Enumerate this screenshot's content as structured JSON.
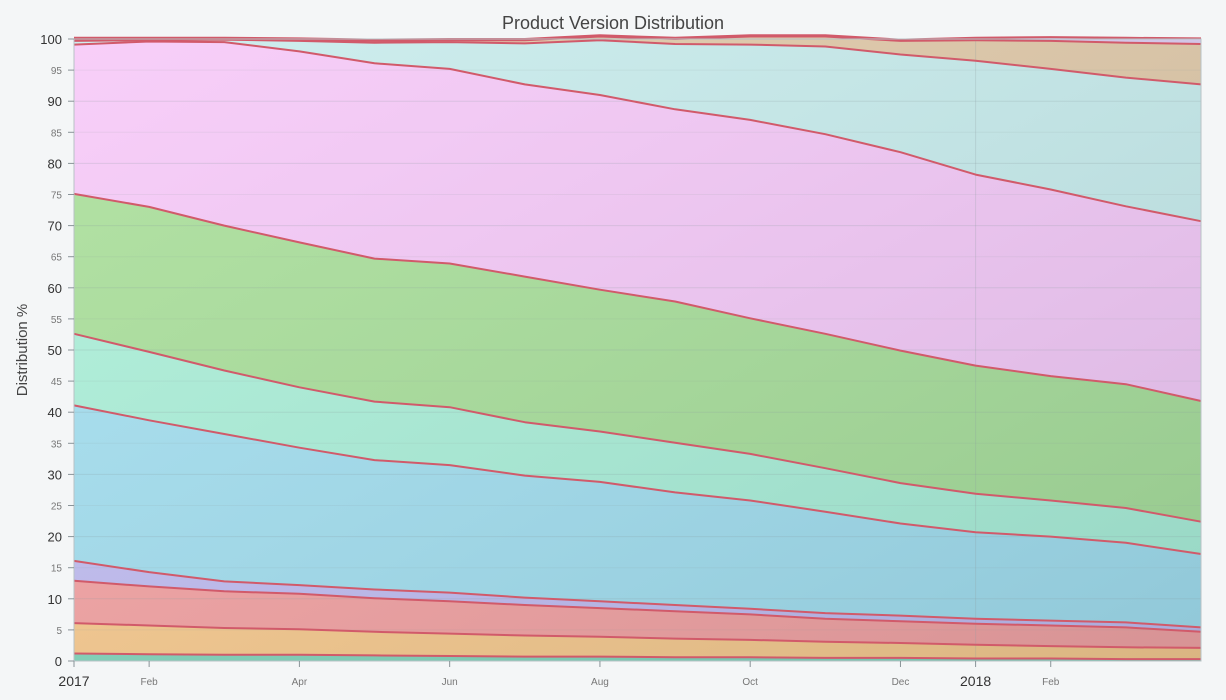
{
  "chart_data": {
    "type": "area",
    "stacked": true,
    "title": "Product Version Distribution",
    "xlabel": "",
    "ylabel": "Distribution %",
    "ylim": [
      0,
      100
    ],
    "grid": true,
    "legend": "none",
    "x": [
      "2017-01",
      "2017-02",
      "2017-03",
      "2017-04",
      "2017-05",
      "2017-06",
      "2017-07",
      "2017-08",
      "2017-09",
      "2017-10",
      "2017-11",
      "2017-12",
      "2018-01",
      "2018-02",
      "2018-03",
      "2018-04"
    ],
    "x_tick_labels": [
      {
        "x": "2017-01",
        "label": "2017",
        "major": true
      },
      {
        "x": "2017-02",
        "label": "Feb",
        "major": false
      },
      {
        "x": "2017-04",
        "label": "Apr",
        "major": false
      },
      {
        "x": "2017-06",
        "label": "Jun",
        "major": false
      },
      {
        "x": "2017-08",
        "label": "Aug",
        "major": false
      },
      {
        "x": "2017-10",
        "label": "Oct",
        "major": false
      },
      {
        "x": "2017-12",
        "label": "Dec",
        "major": false
      },
      {
        "x": "2018-01",
        "label": "2018",
        "major": true
      },
      {
        "x": "2018-02",
        "label": "Feb",
        "major": false
      }
    ],
    "y_tick_labels": [
      "0",
      "5",
      "10",
      "15",
      "20",
      "25",
      "30",
      "35",
      "40",
      "45",
      "50",
      "55",
      "60",
      "65",
      "70",
      "75",
      "80",
      "85",
      "90",
      "95",
      "100"
    ],
    "series": [
      {
        "color": "#7fd4b8",
        "values": [
          1.2,
          1.1,
          1.0,
          1.0,
          0.9,
          0.8,
          0.7,
          0.7,
          0.6,
          0.6,
          0.5,
          0.5,
          0.4,
          0.4,
          0.3,
          0.3
        ]
      },
      {
        "color": "#fbc98a",
        "values": [
          4.9,
          4.6,
          4.3,
          4.1,
          3.8,
          3.6,
          3.4,
          3.2,
          3.0,
          2.8,
          2.6,
          2.4,
          2.2,
          2.0,
          1.9,
          1.8
        ]
      },
      {
        "color": "#f7a0a0",
        "values": [
          6.8,
          6.3,
          5.9,
          5.7,
          5.4,
          5.2,
          4.9,
          4.6,
          4.4,
          4.1,
          3.7,
          3.5,
          3.4,
          3.3,
          3.2,
          2.6
        ]
      },
      {
        "color": "#c2bcf2",
        "values": [
          3.2,
          2.3,
          1.6,
          1.4,
          1.4,
          1.4,
          1.2,
          1.1,
          1.0,
          0.9,
          0.9,
          0.9,
          0.8,
          0.8,
          0.8,
          0.7
        ]
      },
      {
        "color": "#a3dff0",
        "values": [
          25.0,
          24.4,
          23.7,
          22.1,
          20.8,
          20.5,
          19.6,
          19.2,
          18.1,
          17.4,
          16.3,
          14.8,
          13.9,
          13.5,
          12.8,
          11.8
        ]
      },
      {
        "color": "#abf0d8",
        "values": [
          11.5,
          11.0,
          10.2,
          9.7,
          9.4,
          9.3,
          8.6,
          8.1,
          8.0,
          7.5,
          7.0,
          6.5,
          6.2,
          5.8,
          5.6,
          5.2
        ]
      },
      {
        "color": "#a9df98",
        "values": [
          22.5,
          23.3,
          23.3,
          23.3,
          23.0,
          23.1,
          23.4,
          22.8,
          22.7,
          21.8,
          21.6,
          21.3,
          20.6,
          20.0,
          19.9,
          19.4
        ]
      },
      {
        "color": "#f7c8f8",
        "values": [
          24.0,
          26.6,
          29.5,
          30.7,
          31.4,
          31.3,
          30.9,
          31.3,
          30.9,
          31.9,
          32.1,
          31.9,
          30.7,
          30.0,
          28.6,
          28.9
        ]
      },
      {
        "color": "#c8ecec",
        "values": [
          0.6,
          0.2,
          0.4,
          1.7,
          3.3,
          4.3,
          6.6,
          8.8,
          10.5,
          12.1,
          14.1,
          15.7,
          18.3,
          19.4,
          20.7,
          22.0
        ]
      },
      {
        "color": "#e2c8a6",
        "values": [
          0.3,
          0.2,
          0.1,
          0.2,
          0.3,
          0.3,
          0.5,
          0.6,
          0.8,
          1.3,
          1.6,
          2.2,
          3.3,
          4.5,
          5.6,
          6.5
        ]
      },
      {
        "color": "#dccaf0",
        "values": [
          0.2,
          0.2,
          0.2,
          0.2,
          0.2,
          0.2,
          0.2,
          0.2,
          0.2,
          0.2,
          0.2,
          0.2,
          0.4,
          0.6,
          0.8,
          0.9
        ]
      }
    ],
    "line_color": "#d15a6a"
  }
}
